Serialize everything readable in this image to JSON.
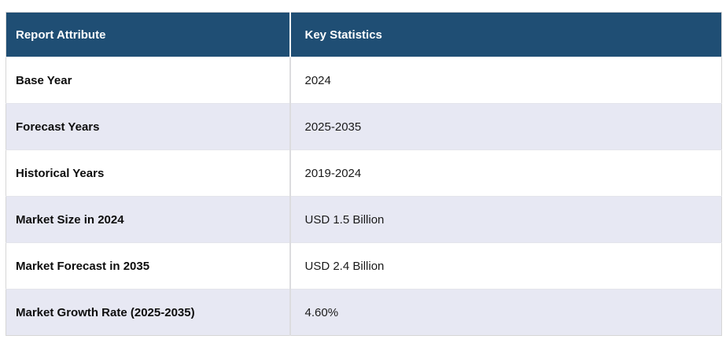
{
  "table": {
    "header": {
      "attribute": "Report Attribute",
      "statistics": "Key Statistics"
    },
    "rows": [
      {
        "attribute": "Base Year",
        "value": "2024"
      },
      {
        "attribute": "Forecast Years",
        "value": "2025-2035"
      },
      {
        "attribute": "Historical Years",
        "value": "2019-2024"
      },
      {
        "attribute": "Market Size in 2024",
        "value": "USD 1.5 Billion"
      },
      {
        "attribute": "Market Forecast in 2035",
        "value": "USD 2.4 Billion"
      },
      {
        "attribute": "Market Growth Rate (2025-2035)",
        "value": "4.60%"
      }
    ],
    "colors": {
      "header_bg": "#1F4E74",
      "header_text": "#FFFFFF",
      "row_alt_bg": "#E7E8F3",
      "row_bg": "#FFFFFF",
      "border": "#D6D6D6",
      "body_text": "#1A1A1A"
    }
  }
}
